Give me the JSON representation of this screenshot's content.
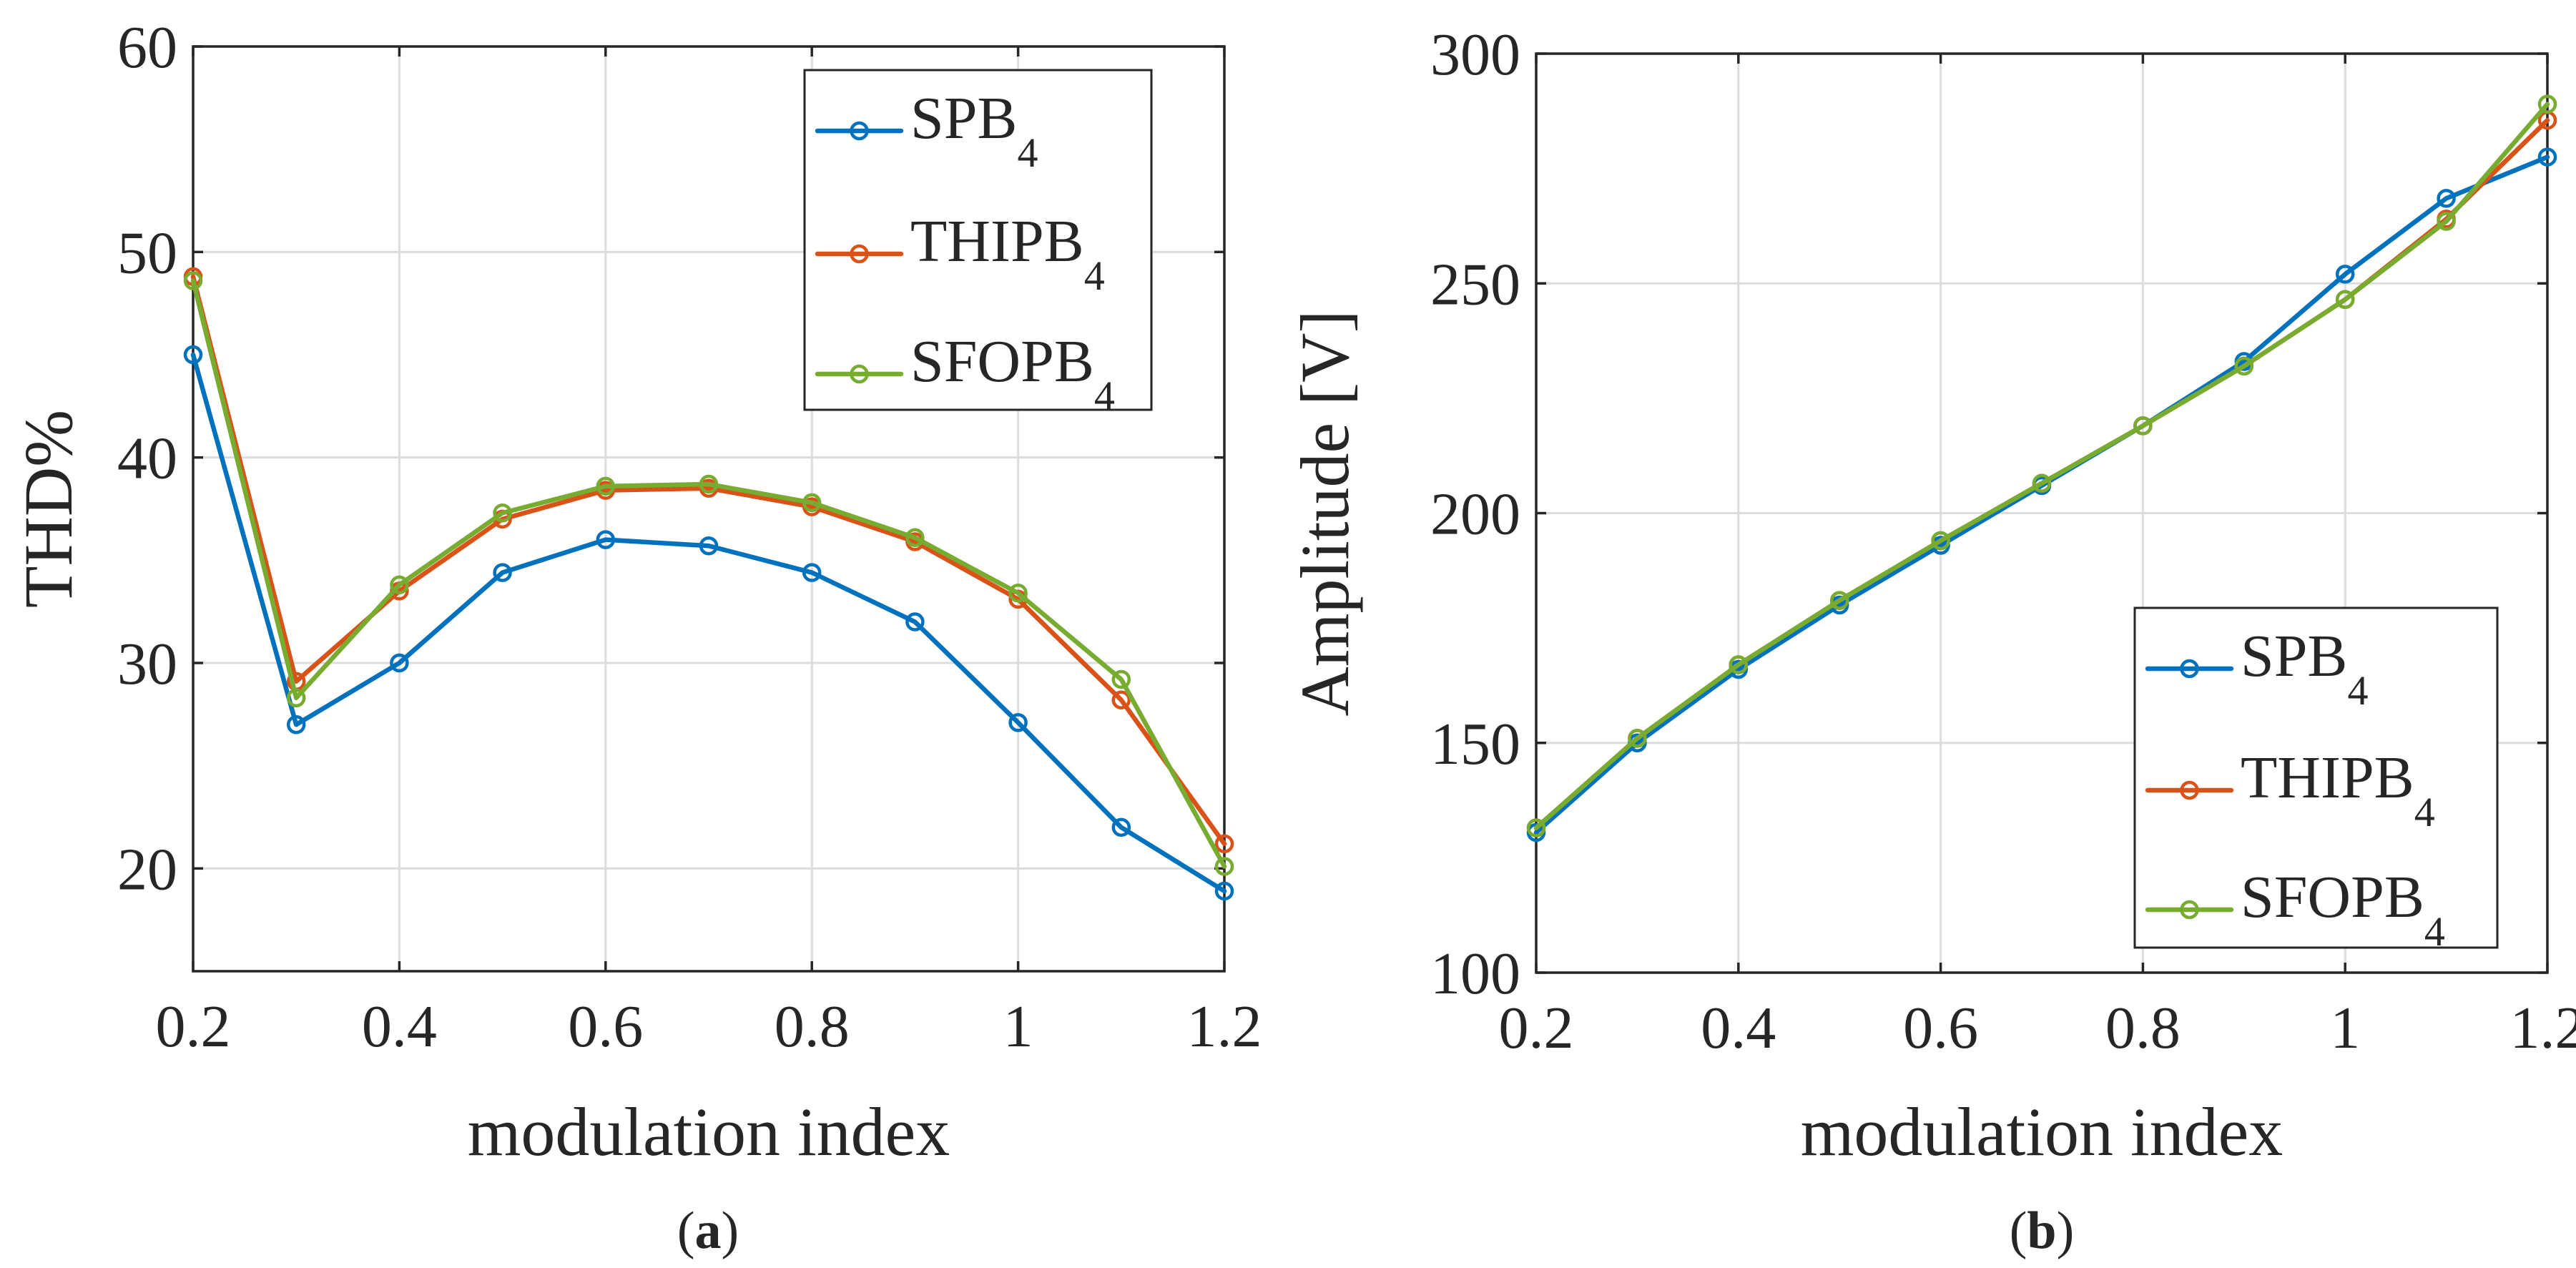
{
  "chart_data": [
    {
      "type": "line",
      "panel_label": "a",
      "xlabel": "modulation index",
      "ylabel": "THD%",
      "xlim": [
        0.2,
        1.2
      ],
      "ylim": [
        15,
        60
      ],
      "xticks": [
        "0.2",
        "0.4",
        "0.6",
        "0.8",
        "1",
        "1.2"
      ],
      "yticks": [
        "20",
        "30",
        "40",
        "50",
        "60"
      ],
      "grid": true,
      "legend_position": "top-right",
      "x": [
        0.2,
        0.3,
        0.4,
        0.5,
        0.6,
        0.7,
        0.8,
        0.9,
        1.0,
        1.1,
        1.2
      ],
      "series": [
        {
          "name": "SPB",
          "name_subscript": "4",
          "color": "#0072BD",
          "values": [
            45.0,
            27.0,
            30.0,
            34.4,
            36.0,
            35.7,
            34.4,
            32.0,
            27.1,
            22.0,
            18.9
          ]
        },
        {
          "name": "THIPB",
          "name_subscript": "4",
          "color": "#D95319",
          "values": [
            48.8,
            29.1,
            33.5,
            37.0,
            38.4,
            38.5,
            37.6,
            35.9,
            33.1,
            28.2,
            21.2
          ]
        },
        {
          "name": "SFOPB",
          "name_subscript": "4",
          "color": "#77AC30",
          "values": [
            48.6,
            28.3,
            33.8,
            37.3,
            38.6,
            38.7,
            37.8,
            36.1,
            33.4,
            29.2,
            20.1
          ]
        }
      ]
    },
    {
      "type": "line",
      "panel_label": "b",
      "xlabel": "modulation index",
      "ylabel": "Amplitude [V]",
      "xlim": [
        0.2,
        1.2
      ],
      "ylim": [
        100,
        300
      ],
      "xticks": [
        "0.2",
        "0.4",
        "0.6",
        "0.8",
        "1",
        "1.2"
      ],
      "yticks": [
        "100",
        "150",
        "200",
        "250",
        "300"
      ],
      "grid": true,
      "legend_position": "bottom-right",
      "x": [
        0.2,
        0.3,
        0.4,
        0.5,
        0.6,
        0.7,
        0.8,
        0.9,
        1.0,
        1.1,
        1.2
      ],
      "series": [
        {
          "name": "SPB",
          "name_subscript": "4",
          "color": "#0072BD",
          "values": [
            130.5,
            150.0,
            166.0,
            180.0,
            193.0,
            206.0,
            219.0,
            233.0,
            252.0,
            268.5,
            277.5
          ]
        },
        {
          "name": "THIPB",
          "name_subscript": "4",
          "color": "#D95319",
          "values": [
            131.5,
            151.0,
            167.0,
            181.0,
            194.0,
            206.5,
            219.0,
            232.0,
            246.5,
            264.0,
            285.5
          ]
        },
        {
          "name": "SFOPB",
          "name_subscript": "4",
          "color": "#77AC30",
          "values": [
            131.5,
            151.0,
            167.0,
            181.0,
            194.0,
            206.5,
            219.0,
            232.0,
            246.5,
            263.5,
            289.0
          ]
        }
      ]
    }
  ]
}
